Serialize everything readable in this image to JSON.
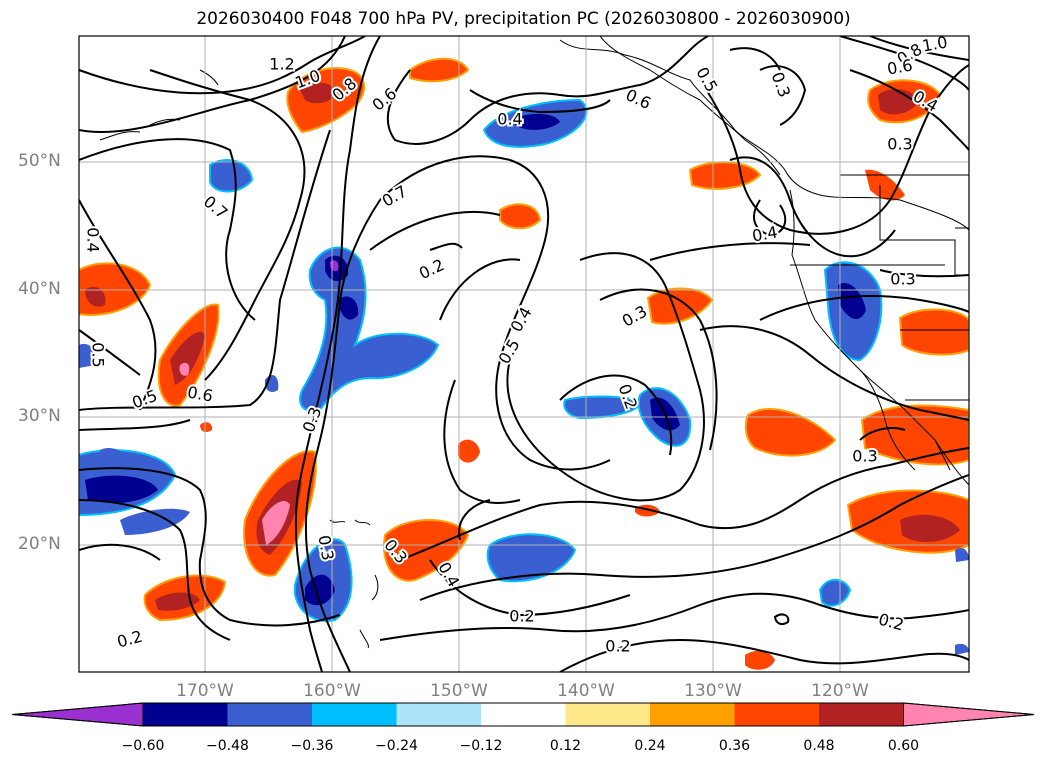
{
  "title": "2026030400 F048 700 hPa PV, precipitation PC (2026030800 - 2026030900)",
  "lat_labels": [
    "50°N",
    "40°N",
    "30°N",
    "20°N"
  ],
  "lon_labels": [
    "170°W",
    "160°W",
    "150°W",
    "140°W",
    "130°W",
    "120°W"
  ],
  "colorbar": {
    "ticks": [
      "−0.60",
      "−0.48",
      "−0.36",
      "−0.24",
      "−0.12",
      "0.12",
      "0.24",
      "0.36",
      "0.48",
      "0.60"
    ],
    "colors": [
      "#9b30d0",
      "#000090",
      "#3a5fd0",
      "#00bfff",
      "#aee4fa",
      "#ffffff",
      "#ffe88a",
      "#ffa000",
      "#ff4500",
      "#b22222",
      "#ff85b0"
    ]
  },
  "contour_labels": [
    "1.2",
    "1.0",
    "0.8",
    "0.6",
    "0.4",
    "0.6",
    "0.5",
    "0.3",
    "0.8",
    "1.0",
    "0.6",
    "0.4",
    "0.3",
    "0.7",
    "0.7",
    "0.4",
    "0.4",
    "0.2",
    "0.4",
    "0.5",
    "0.3",
    "0.3",
    "0.5",
    "0.5",
    "0.6",
    "0.3",
    "0.2",
    "0.3",
    "0.3",
    "0.4",
    "0.2",
    "0.2",
    "0.2",
    "0.2",
    "0.3"
  ]
}
